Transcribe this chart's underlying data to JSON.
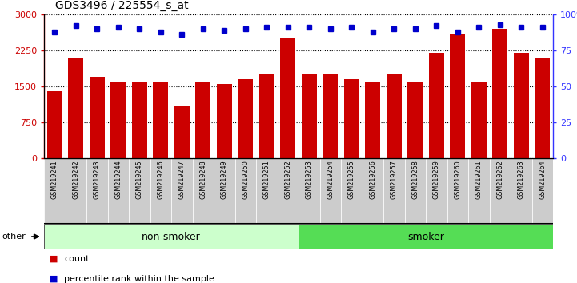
{
  "title": "GDS3496 / 225554_s_at",
  "categories": [
    "GSM219241",
    "GSM219242",
    "GSM219243",
    "GSM219244",
    "GSM219245",
    "GSM219246",
    "GSM219247",
    "GSM219248",
    "GSM219249",
    "GSM219250",
    "GSM219251",
    "GSM219252",
    "GSM219253",
    "GSM219254",
    "GSM219255",
    "GSM219256",
    "GSM219257",
    "GSM219258",
    "GSM219259",
    "GSM219260",
    "GSM219261",
    "GSM219262",
    "GSM219263",
    "GSM219264"
  ],
  "bar_values": [
    1400,
    2100,
    1700,
    1600,
    1600,
    1600,
    1100,
    1600,
    1550,
    1650,
    1750,
    2500,
    1750,
    1750,
    1650,
    1600,
    1750,
    1600,
    2200,
    2600,
    1600,
    2700,
    2200,
    2100
  ],
  "percentile_values": [
    88,
    92,
    90,
    91,
    90,
    88,
    86,
    90,
    89,
    90,
    91,
    91,
    91,
    90,
    91,
    88,
    90,
    90,
    92,
    88,
    91,
    93,
    91,
    91
  ],
  "bar_color": "#cc0000",
  "dot_color": "#0000cc",
  "left_ylim": [
    0,
    3000
  ],
  "right_ylim": [
    0,
    100
  ],
  "left_yticks": [
    0,
    750,
    1500,
    2250,
    3000
  ],
  "right_yticks": [
    0,
    25,
    50,
    75,
    100
  ],
  "right_yticklabels": [
    "0",
    "25",
    "50",
    "75",
    "100%"
  ],
  "non_smoker_count": 12,
  "smoker_count": 12,
  "group_labels": [
    "non-smoker",
    "smoker"
  ],
  "group_bg_color_ns": "#ccffcc",
  "group_bg_color_s": "#55dd55",
  "legend_count_label": "count",
  "legend_pct_label": "percentile rank within the sample",
  "other_label": "other",
  "bg_color": "#ffffff",
  "tick_color_left": "#cc0000",
  "tick_color_right": "#3333ff",
  "cell_bg_color": "#cccccc",
  "cell_border_color": "#ffffff"
}
